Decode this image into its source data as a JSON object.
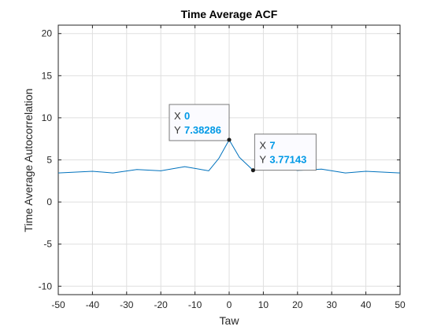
{
  "chart_data": {
    "type": "line",
    "title": "Time Average ACF",
    "xlabel": "Taw",
    "ylabel": "Time Average Autocorrelation",
    "xlim": [
      -50,
      50
    ],
    "ylim": [
      -11,
      21
    ],
    "xticks": [
      -50,
      -40,
      -30,
      -20,
      -10,
      0,
      10,
      20,
      30,
      40,
      50
    ],
    "yticks": [
      -10,
      -5,
      0,
      5,
      10,
      15,
      20
    ],
    "grid": true,
    "series": [
      {
        "name": "Time Average ACF",
        "color": "#0072bd",
        "x": [
          -50,
          -40,
          -34,
          -27,
          -20,
          -13,
          -6,
          -3,
          0,
          3,
          7,
          13,
          20,
          27,
          34,
          40,
          50
        ],
        "y": [
          3.45,
          3.65,
          3.45,
          3.85,
          3.7,
          4.2,
          3.7,
          5.2,
          7.38286,
          5.3,
          3.77143,
          4.25,
          3.75,
          3.9,
          3.45,
          3.65,
          3.45
        ]
      }
    ],
    "datatips": [
      {
        "x_label": "X",
        "x_value": "0",
        "y_label": "Y",
        "y_value": "7.38286",
        "x": 0,
        "y": 7.38286
      },
      {
        "x_label": "X",
        "x_value": "7",
        "y_label": "Y",
        "y_value": "3.77143",
        "x": 7,
        "y": 3.77143
      }
    ]
  }
}
